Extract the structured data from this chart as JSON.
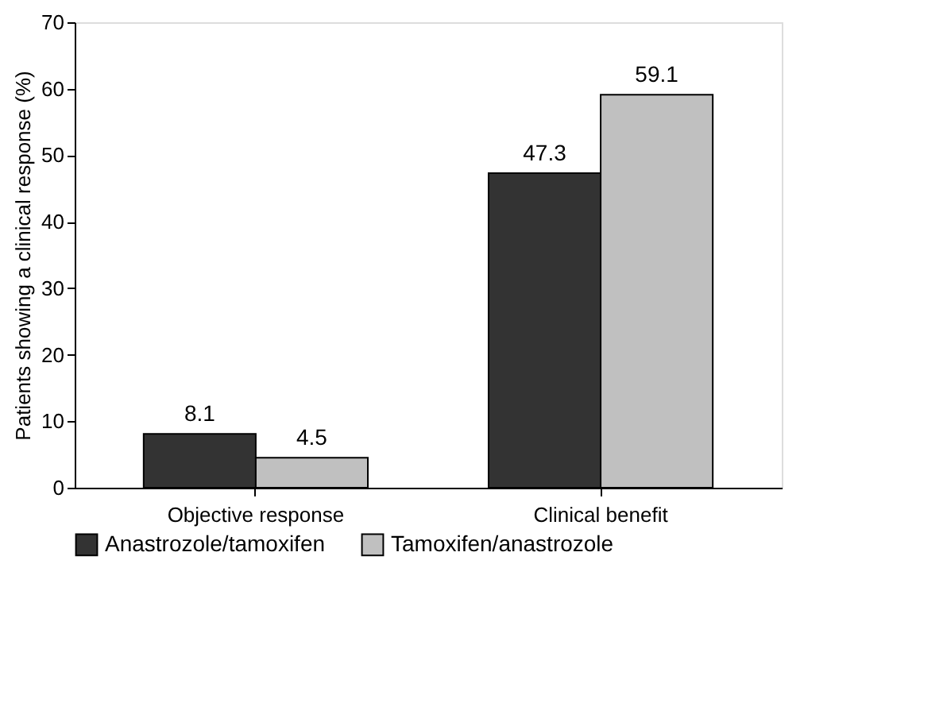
{
  "chart_data": {
    "type": "bar",
    "ylabel": "Patients showing a clinical response (%)",
    "categories": [
      "Objective response",
      "Clinical benefit"
    ],
    "series": [
      {
        "name": "Anastrozole/tamoxifen",
        "color": "#333333",
        "values": [
          8.1,
          47.3
        ]
      },
      {
        "name": "Tamoxifen/anastrozole",
        "color": "#c0c0c0",
        "values": [
          4.5,
          59.1
        ]
      }
    ],
    "ylim": [
      0,
      70
    ],
    "yticks": [
      0,
      10,
      20,
      30,
      40,
      50,
      60,
      70
    ],
    "grid": false,
    "legend": "bottom",
    "data_labels": true
  }
}
